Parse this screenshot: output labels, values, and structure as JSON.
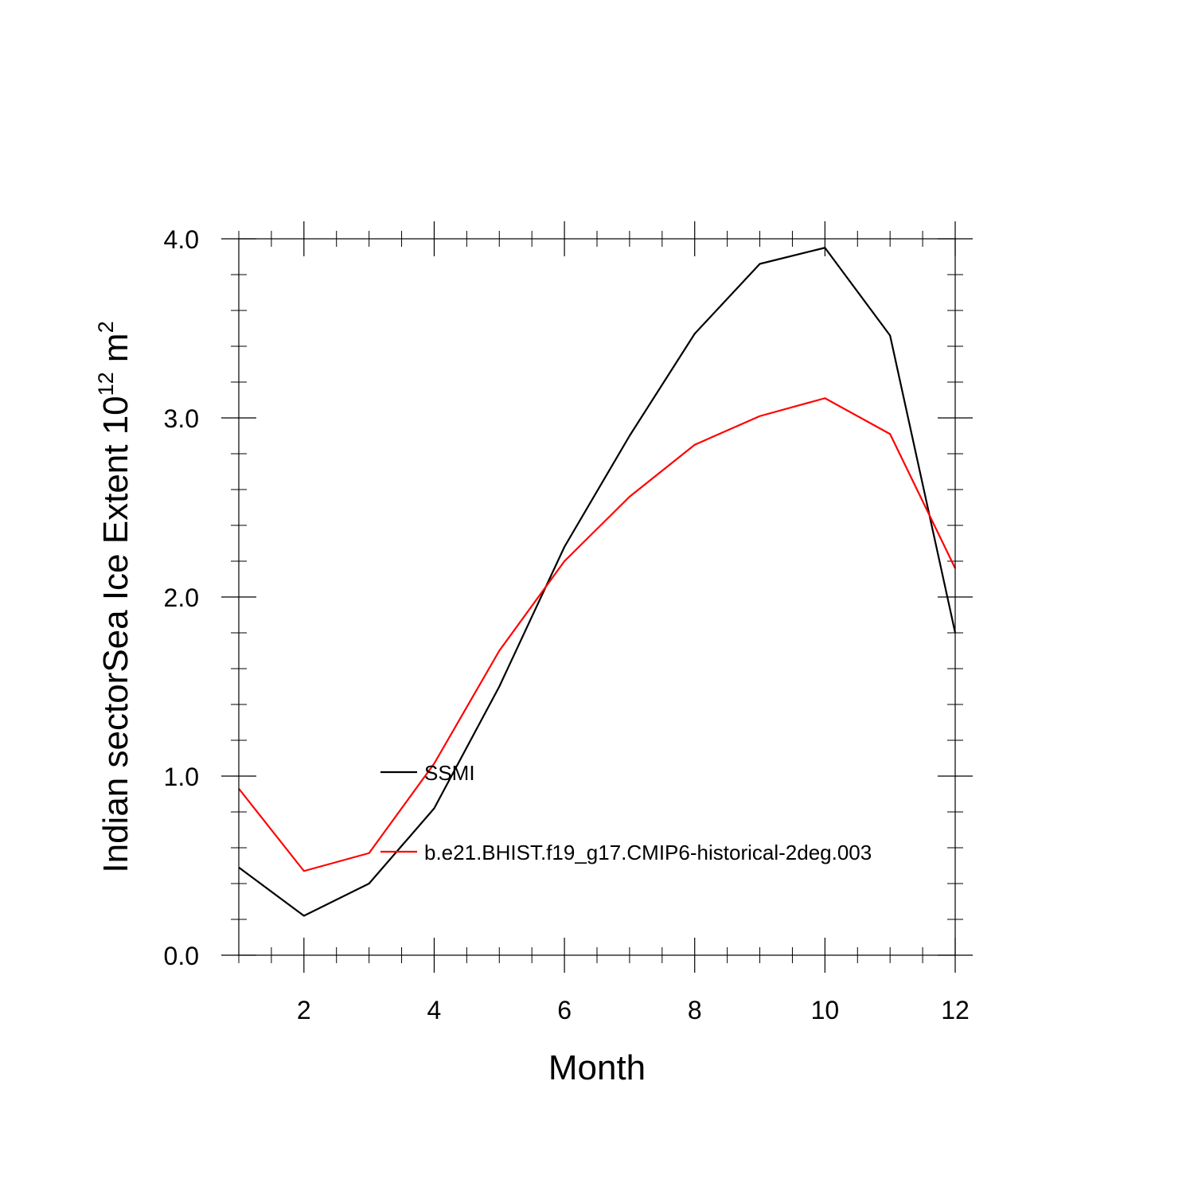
{
  "chart_data": {
    "type": "line",
    "xlabel": "Month",
    "ylabel": {
      "text": "Indian sectorSea Ice Extent 10",
      "exp1": "12",
      "unit": " m",
      "exp2": "2"
    },
    "xlim": [
      1,
      12
    ],
    "ylim": [
      0,
      4
    ],
    "x_ticks": [
      2,
      4,
      6,
      8,
      10,
      12
    ],
    "y_ticks": [
      "0.0",
      "1.0",
      "2.0",
      "3.0",
      "4.0"
    ],
    "grid": false,
    "legend_position": "center",
    "x": [
      1,
      2,
      3,
      4,
      5,
      6,
      7,
      8,
      9,
      10,
      11,
      12
    ],
    "series": [
      {
        "name": "SSMI",
        "color": "#000000",
        "values": [
          0.49,
          0.22,
          0.4,
          0.82,
          1.5,
          2.28,
          2.9,
          3.47,
          3.86,
          3.95,
          3.46,
          1.8
        ]
      },
      {
        "name": "b.e21.BHIST.f19_g17.CMIP6-historical-2deg.003",
        "color": "#ff0000",
        "values": [
          0.93,
          0.47,
          0.57,
          1.07,
          1.7,
          2.2,
          2.56,
          2.85,
          3.01,
          3.11,
          2.91,
          2.16
        ]
      }
    ]
  }
}
